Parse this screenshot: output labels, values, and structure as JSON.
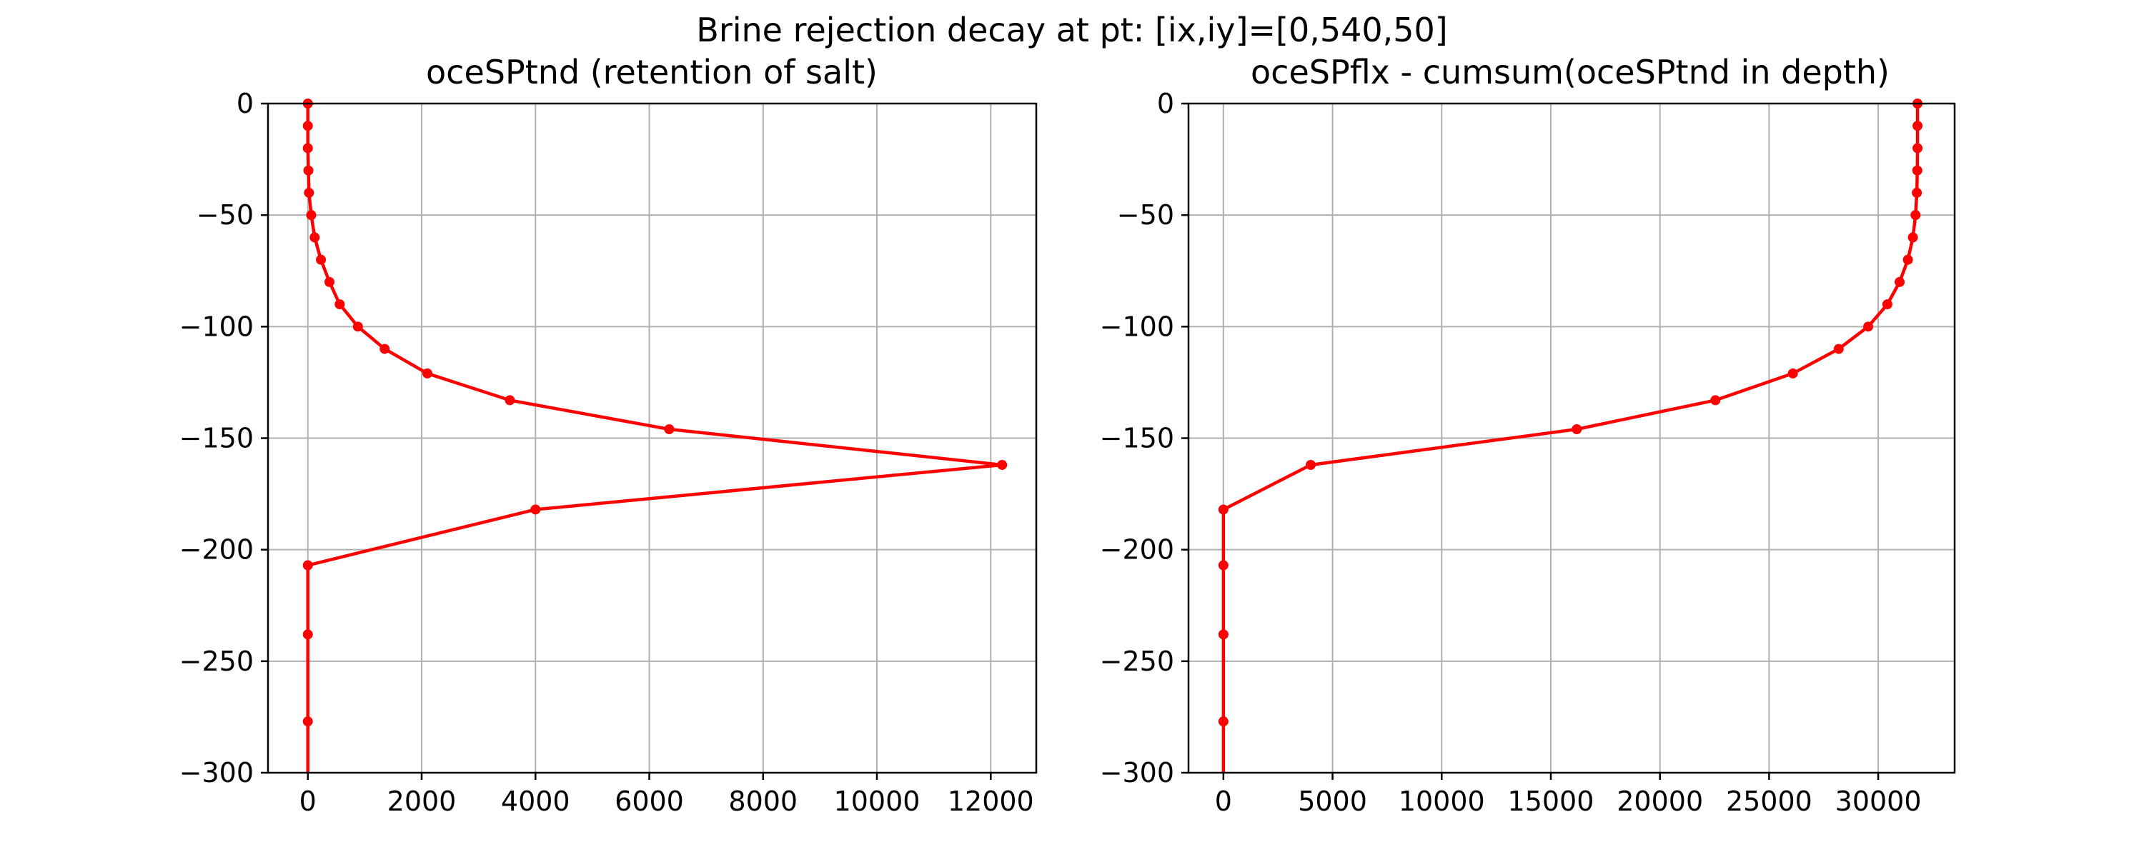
{
  "figure": {
    "suptitle": "Brine rejection decay at pt: [ix,iy]=[0,540,50]"
  },
  "colors": {
    "line": "#ff0000",
    "grid": "#b0b0b0",
    "axes": "#000000"
  },
  "chart_data": [
    {
      "type": "line",
      "title": "oceSPtnd (retention of salt)",
      "xlabel": "",
      "ylabel": "",
      "xlim": [
        -700,
        12800
      ],
      "ylim": [
        -300,
        0
      ],
      "xticks": [
        0,
        2000,
        4000,
        6000,
        8000,
        10000,
        12000
      ],
      "yticks": [
        0,
        -50,
        -100,
        -150,
        -200,
        -250,
        -300
      ],
      "grid": true,
      "marker": "circle",
      "series": [
        {
          "x": [
            0,
            0,
            0,
            10,
            20,
            60,
            120,
            230,
            380,
            560,
            880,
            1350,
            2100,
            3550,
            6350,
            12200,
            4000,
            0,
            0,
            0,
            0
          ],
          "y": [
            0,
            -10,
            -20,
            -30,
            -40,
            -50,
            -60,
            -70,
            -80,
            -90,
            -100,
            -110,
            -121,
            -133,
            -146,
            -162,
            -182,
            -207,
            -238,
            -277,
            -310
          ]
        }
      ]
    },
    {
      "type": "line",
      "title": "oceSPflx - cumsum(oceSPtnd in depth)",
      "xlabel": "",
      "ylabel": "",
      "xlim": [
        -1600,
        33500
      ],
      "ylim": [
        -300,
        0
      ],
      "xticks": [
        0,
        5000,
        10000,
        15000,
        20000,
        25000,
        30000
      ],
      "yticks": [
        0,
        -50,
        -100,
        -150,
        -200,
        -250,
        -300
      ],
      "grid": true,
      "marker": "circle",
      "series": [
        {
          "x": [
            31800,
            31800,
            31800,
            31790,
            31770,
            31710,
            31590,
            31360,
            30980,
            30420,
            29540,
            28190,
            26090,
            22540,
            16190,
            4000,
            0,
            0,
            0,
            0,
            0
          ],
          "y": [
            0,
            -10,
            -20,
            -30,
            -40,
            -50,
            -60,
            -70,
            -80,
            -90,
            -100,
            -110,
            -121,
            -133,
            -146,
            -162,
            -182,
            -207,
            -238,
            -277,
            -310
          ]
        }
      ]
    }
  ]
}
